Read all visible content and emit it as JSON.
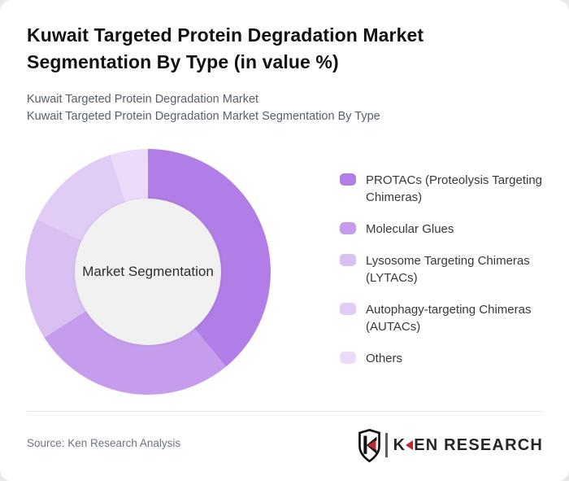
{
  "header": {
    "title": "Kuwait Targeted Protein Degradation Market Segmentation By Type (in value %)",
    "subtitle_line1": "Kuwait Targeted Protein Degradation Market",
    "subtitle_line2": "Kuwait Targeted Protein Degradation Market Segmentation By Type"
  },
  "chart_data": {
    "type": "pie",
    "variant": "donut",
    "title": "Kuwait Targeted Protein Degradation Market Segmentation By Type (in value %)",
    "center_label": "Market Segmentation",
    "categories": [
      "PROTACs (Proteolysis Targeting Chimeras)",
      "Molecular Glues",
      "Lysosome Targeting Chimeras (LYTACs)",
      "Autophagy-targeting Chimeras (AUTACs)",
      "Others"
    ],
    "values": [
      39,
      27,
      16,
      13,
      5
    ],
    "unit": "%",
    "colors": [
      "#b17de6",
      "#c69ced",
      "#dabff3",
      "#e1ccf6",
      "#ecdcfa"
    ],
    "start_angle_deg": 0,
    "direction": "clockwise",
    "legend_position": "right",
    "hole_color": "#f1f1f2"
  },
  "footer": {
    "source": "Source: Ken Research Analysis",
    "brand": "KEN RESEARCH",
    "brand_accent": "#c1272d",
    "brand_text_color": "#26262a"
  }
}
